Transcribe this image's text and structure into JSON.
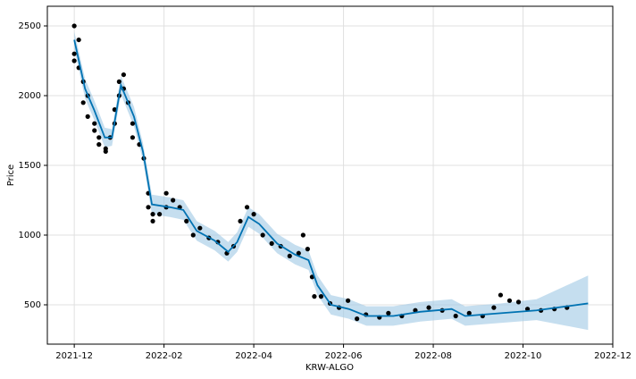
{
  "chart_data": {
    "type": "line",
    "x_label": "KRW-ALGO",
    "y_label": "Price",
    "grid": true,
    "xlim": [
      -0.6,
      12.0
    ],
    "ylim": [
      218,
      2641
    ],
    "xticks": [
      {
        "value": 0,
        "label": "2021-12"
      },
      {
        "value": 2,
        "label": "2022-02"
      },
      {
        "value": 4,
        "label": "2022-04"
      },
      {
        "value": 6,
        "label": "2022-06"
      },
      {
        "value": 8,
        "label": "2022-08"
      },
      {
        "value": 10,
        "label": "2022-10"
      },
      {
        "value": 12,
        "label": "2022-12"
      }
    ],
    "yticks": [
      500,
      1000,
      1500,
      2000,
      2500
    ],
    "series": [
      {
        "type": "band",
        "color": "#a6cde6",
        "x": [
          0,
          0.24,
          0.44,
          0.68,
          0.84,
          1.04,
          1.33,
          1.53,
          1.73,
          2.13,
          2.43,
          2.73,
          3.13,
          3.43,
          3.63,
          3.88,
          4.12,
          4.52,
          4.92,
          5.22,
          5.42,
          5.72,
          6.12,
          6.51,
          7.11,
          7.71,
          8.41,
          8.71,
          9.5,
          10.3,
          11.45
        ],
        "upper": [
          2460,
          2120,
          1970,
          1770,
          1760,
          2140,
          1920,
          1660,
          1290,
          1270,
          1250,
          1100,
          1030,
          950,
          1020,
          1200,
          1150,
          1010,
          930,
          890,
          710,
          570,
          540,
          490,
          490,
          520,
          540,
          490,
          510,
          540,
          710
        ],
        "lower": [
          2340,
          1980,
          1830,
          1630,
          1640,
          2010,
          1780,
          1540,
          1150,
          1130,
          1110,
          960,
          890,
          810,
          880,
          1060,
          1010,
          870,
          790,
          750,
          570,
          430,
          400,
          350,
          350,
          380,
          400,
          350,
          370,
          390,
          320
        ]
      },
      {
        "type": "scatter",
        "color": "#000000",
        "x": [
          0,
          0,
          0,
          0.1,
          0.1,
          0.2,
          0.2,
          0.3,
          0.3,
          0.45,
          0.45,
          0.55,
          0.55,
          0.7,
          0.7,
          0.8,
          0.9,
          0.9,
          1.0,
          1.0,
          1.1,
          1.1,
          1.2,
          1.3,
          1.3,
          1.45,
          1.55,
          1.65,
          1.65,
          1.75,
          1.75,
          1.9,
          2.05,
          2.05,
          2.2,
          2.35,
          2.5,
          2.65,
          2.8,
          3.0,
          3.2,
          3.4,
          3.55,
          3.7,
          3.85,
          4.0,
          4.2,
          4.4,
          4.6,
          4.8,
          5.0,
          5.1,
          5.2,
          5.3,
          5.35,
          5.5,
          5.7,
          5.9,
          6.1,
          6.3,
          6.5,
          6.8,
          7.0,
          7.3,
          7.6,
          7.9,
          8.2,
          8.5,
          8.8,
          9.1,
          9.35,
          9.5,
          9.7,
          9.9,
          10.1,
          10.4,
          10.7,
          10.98
        ],
        "values": [
          2300,
          2500,
          2250,
          2400,
          2200,
          2100,
          1950,
          2000,
          1850,
          1750,
          1800,
          1650,
          1700,
          1620,
          1600,
          1700,
          1900,
          1800,
          2000,
          2100,
          2150,
          2050,
          1950,
          1800,
          1700,
          1650,
          1550,
          1300,
          1200,
          1100,
          1150,
          1150,
          1200,
          1300,
          1250,
          1200,
          1100,
          1000,
          1050,
          980,
          950,
          870,
          920,
          1100,
          1200,
          1150,
          1000,
          940,
          920,
          850,
          870,
          1000,
          900,
          700,
          560,
          560,
          510,
          480,
          530,
          400,
          430,
          410,
          440,
          420,
          460,
          480,
          460,
          420,
          440,
          420,
          480,
          570,
          530,
          520,
          470,
          460,
          470,
          480
        ]
      },
      {
        "type": "line",
        "color": "#0072b2",
        "x": [
          0,
          0.24,
          0.44,
          0.68,
          0.84,
          1.04,
          1.33,
          1.53,
          1.73,
          2.13,
          2.43,
          2.73,
          3.13,
          3.43,
          3.63,
          3.88,
          4.12,
          4.52,
          4.92,
          5.22,
          5.42,
          5.72,
          6.12,
          6.51,
          7.11,
          7.71,
          8.41,
          8.71,
          9.5,
          10.3,
          11.45
        ],
        "values": [
          2400,
          2050,
          1900,
          1700,
          1700,
          2075,
          1850,
          1600,
          1220,
          1200,
          1180,
          1030,
          960,
          880,
          950,
          1130,
          1080,
          940,
          860,
          820,
          640,
          500,
          470,
          420,
          420,
          450,
          470,
          420,
          440,
          460,
          510
        ]
      }
    ]
  }
}
